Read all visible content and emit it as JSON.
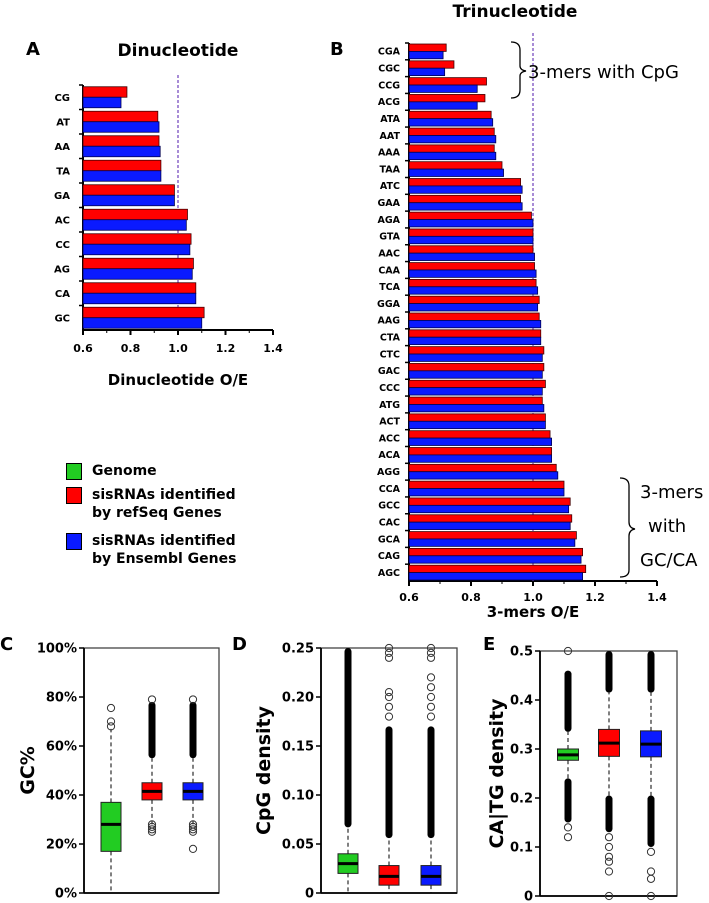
{
  "colors": {
    "genome": "#22cc22",
    "refseq": "#ff0000",
    "ensembl": "#0a1aff",
    "reference_line": "#7a4fbf"
  },
  "legend": {
    "items": [
      {
        "key": "genome",
        "label": "Genome"
      },
      {
        "key": "refseq",
        "label": "sisRNAs identified by refSeq Genes"
      },
      {
        "key": "ensembl",
        "label": "sisRNAs identified by Ensembl Genes"
      }
    ]
  },
  "chart_data": [
    {
      "panel": "A",
      "type": "bar",
      "orientation": "horizontal",
      "title": "Dinucleotide",
      "xlabel": "Dinucleotide O/E",
      "ylabel": "",
      "xlim": [
        0.6,
        1.4
      ],
      "xticks": [
        "0.6",
        "0.8",
        "1.0",
        "1.2",
        "1.4"
      ],
      "reference_line": 1.0,
      "categories": [
        "CG",
        "AT",
        "AA",
        "TA",
        "GA",
        "AC",
        "CC",
        "AG",
        "CA",
        "GC"
      ],
      "series": [
        {
          "name": "sisRNAs identified by refSeq Genes",
          "key": "refseq",
          "values": [
            0.785,
            0.915,
            0.92,
            0.928,
            0.985,
            1.04,
            1.055,
            1.065,
            1.075,
            1.11
          ]
        },
        {
          "name": "sisRNAs identified by Ensembl Genes",
          "key": "ensembl",
          "values": [
            0.76,
            0.92,
            0.925,
            0.928,
            0.985,
            1.035,
            1.05,
            1.06,
            1.075,
            1.1
          ]
        }
      ]
    },
    {
      "panel": "B",
      "type": "bar",
      "orientation": "horizontal",
      "title": "Trinucleotide",
      "xlabel": "3-mers O/E",
      "ylabel": "",
      "xlim": [
        0.6,
        1.4
      ],
      "xticks": [
        "0.6",
        "0.8",
        "1.0",
        "1.2",
        "1.4"
      ],
      "reference_line": 1.0,
      "categories": [
        "CGA",
        "CGC",
        "CCG",
        "ACG",
        "ATA",
        "AAT",
        "AAA",
        "TAA",
        "ATC",
        "GAA",
        "AGA",
        "GTA",
        "AAC",
        "CAA",
        "TCA",
        "GGA",
        "AAG",
        "CTA",
        "CTC",
        "GAC",
        "CCC",
        "ATG",
        "ACT",
        "ACC",
        "ACA",
        "AGG",
        "CCA",
        "GCC",
        "CAC",
        "GCA",
        "CAG",
        "AGC"
      ],
      "series": [
        {
          "name": "sisRNAs identified by refSeq Genes",
          "key": "refseq",
          "values": [
            0.72,
            0.745,
            0.85,
            0.845,
            0.865,
            0.875,
            0.875,
            0.9,
            0.96,
            0.96,
            0.995,
            1.0,
            1.0,
            1.005,
            1.01,
            1.02,
            1.02,
            1.025,
            1.035,
            1.035,
            1.04,
            1.03,
            1.04,
            1.055,
            1.06,
            1.075,
            1.1,
            1.12,
            1.125,
            1.14,
            1.16,
            1.17
          ]
        },
        {
          "name": "sisRNAs identified by Ensembl Genes",
          "key": "ensembl",
          "values": [
            0.71,
            0.715,
            0.82,
            0.82,
            0.87,
            0.88,
            0.88,
            0.905,
            0.965,
            0.965,
            1.0,
            1.0,
            1.005,
            1.01,
            1.015,
            1.015,
            1.025,
            1.025,
            1.03,
            1.03,
            1.03,
            1.035,
            1.04,
            1.06,
            1.06,
            1.08,
            1.1,
            1.115,
            1.12,
            1.135,
            1.155,
            1.16
          ]
        }
      ],
      "annotations": [
        {
          "text": "3-mers with CpG",
          "categories": [
            "CGA",
            "CGC",
            "CCG",
            "ACG"
          ]
        },
        {
          "text_lines": [
            "3-mers",
            "with",
            "GC/CA"
          ],
          "categories": [
            "CCA",
            "GCC",
            "CAC",
            "GCA",
            "CAG",
            "AGC"
          ]
        }
      ]
    },
    {
      "panel": "C",
      "type": "boxplot",
      "ylabel": "GC%",
      "ylim": [
        0,
        100
      ],
      "yticks": [
        "0%",
        "20%",
        "40%",
        "60%",
        "80%",
        "100%"
      ],
      "tick_values": [
        0,
        20,
        40,
        60,
        80,
        100
      ],
      "boxes": [
        {
          "key": "genome",
          "q1": 17,
          "median": 28,
          "q3": 37,
          "whisker_low": 0,
          "whisker_high": 67,
          "outlier_ranges": [],
          "outliers": [
            68,
            70,
            75.5
          ]
        },
        {
          "key": "refseq",
          "q1": 38,
          "median": 41.5,
          "q3": 45,
          "whisker_low": 28,
          "whisker_high": 55,
          "outlier_ranges": [
            [
              55,
              78
            ]
          ],
          "outliers": [
            25,
            26,
            27,
            28,
            79
          ]
        },
        {
          "key": "ensembl",
          "q1": 38,
          "median": 41.5,
          "q3": 45,
          "whisker_low": 28,
          "whisker_high": 55,
          "outlier_ranges": [
            [
              55,
              78
            ]
          ],
          "outliers": [
            25,
            26,
            27,
            28,
            18,
            79
          ]
        }
      ]
    },
    {
      "panel": "D",
      "type": "boxplot",
      "ylabel": "CpG density",
      "ylim": [
        0,
        0.25
      ],
      "yticks": [
        "0",
        "0.05",
        "0.10",
        "0.15",
        "0.20",
        "0.25"
      ],
      "tick_values": [
        0,
        0.05,
        0.1,
        0.15,
        0.2,
        0.25
      ],
      "boxes": [
        {
          "key": "genome",
          "q1": 0.02,
          "median": 0.03,
          "q3": 0.04,
          "whisker_low": 0,
          "whisker_high": 0.067,
          "outlier_ranges": [
            [
              0.067,
              0.25
            ]
          ],
          "outliers": []
        },
        {
          "key": "refseq",
          "q1": 0.008,
          "median": 0.017,
          "q3": 0.028,
          "whisker_low": 0,
          "whisker_high": 0.056,
          "outlier_ranges": [
            [
              0.056,
              0.17
            ]
          ],
          "outliers": [
            0.18,
            0.19,
            0.2,
            0.205,
            0.24,
            0.245,
            0.25
          ]
        },
        {
          "key": "ensembl",
          "q1": 0.008,
          "median": 0.017,
          "q3": 0.028,
          "whisker_low": 0,
          "whisker_high": 0.056,
          "outlier_ranges": [
            [
              0.056,
              0.17
            ]
          ],
          "outliers": [
            0.18,
            0.19,
            0.2,
            0.21,
            0.22,
            0.24,
            0.245,
            0.25
          ]
        }
      ]
    },
    {
      "panel": "E",
      "type": "boxplot",
      "ylabel": "CA|TG density",
      "ylim": [
        0,
        0.5
      ],
      "yticks": [
        "0",
        "0.1",
        "0.2",
        "0.3",
        "0.4",
        "0.5"
      ],
      "tick_values": [
        0,
        0.1,
        0.2,
        0.3,
        0.4,
        0.5
      ],
      "boxes": [
        {
          "key": "genome",
          "q1": 0.277,
          "median": 0.288,
          "q3": 0.3,
          "whisker_low": 0.24,
          "whisker_high": 0.335,
          "outlier_ranges": [
            [
              0.335,
              0.46
            ],
            [
              0.15,
              0.24
            ]
          ],
          "outliers": [
            0.5,
            0.14,
            0.12
          ]
        },
        {
          "key": "refseq",
          "q1": 0.285,
          "median": 0.312,
          "q3": 0.34,
          "whisker_low": 0.205,
          "whisker_high": 0.415,
          "outlier_ranges": [
            [
              0.415,
              0.5
            ],
            [
              0.13,
              0.205
            ]
          ],
          "outliers": [
            0.12,
            0.1,
            0.08,
            0.07,
            0.05,
            0.0
          ]
        },
        {
          "key": "ensembl",
          "q1": 0.284,
          "median": 0.31,
          "q3": 0.337,
          "whisker_low": 0.205,
          "whisker_high": 0.415,
          "outlier_ranges": [
            [
              0.415,
              0.5
            ],
            [
              0.1,
              0.205
            ]
          ],
          "outliers": [
            0.09,
            0.05,
            0.035,
            0.0
          ]
        }
      ]
    }
  ],
  "labels": {
    "panel_a": "A",
    "panel_b": "B",
    "panel_c": "C",
    "panel_d": "D",
    "panel_e": "E"
  }
}
